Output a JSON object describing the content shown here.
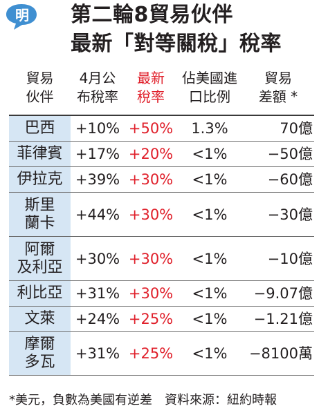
{
  "header": {
    "logo_char": "明",
    "title_line1": "第二輪8貿易伙伴",
    "title_line2": "最新「對等關稅」稅率"
  },
  "columns": [
    [
      "貿易",
      "伙伴"
    ],
    [
      "4月公",
      "布稅率"
    ],
    [
      "最新",
      "稅率"
    ],
    [
      "佔美國進",
      "口比例"
    ],
    [
      "貿易",
      "差額 *"
    ]
  ],
  "rows": [
    {
      "partner": "巴西",
      "april_rate": "+10%",
      "new_rate": "+50%",
      "import_share": "1.3%",
      "balance": "70億"
    },
    {
      "partner": "菲律賓",
      "april_rate": "+17%",
      "new_rate": "+20%",
      "import_share": "<1%",
      "balance": "−50億"
    },
    {
      "partner": "伊拉克",
      "april_rate": "+39%",
      "new_rate": "+30%",
      "import_share": "<1%",
      "balance": "−60億"
    },
    {
      "partner": "斯里\n蘭卡",
      "april_rate": "+44%",
      "new_rate": "+30%",
      "import_share": "<1%",
      "balance": "−30億"
    },
    {
      "partner": "阿爾\n及利亞",
      "april_rate": "+30%",
      "new_rate": "+30%",
      "import_share": "<1%",
      "balance": "−10億"
    },
    {
      "partner": "利比亞",
      "april_rate": "+31%",
      "new_rate": "+30%",
      "import_share": "<1%",
      "balance": "−9.07億"
    },
    {
      "partner": "文萊",
      "april_rate": "+24%",
      "new_rate": "+25%",
      "import_share": "<1%",
      "balance": "−1.21億"
    },
    {
      "partner": "摩爾\n多瓦",
      "april_rate": "+31%",
      "new_rate": "+25%",
      "import_share": "<1%",
      "balance": "−8100萬"
    }
  ],
  "footnote": "*美元，負數為美國有逆差　資料來源：紐約時報",
  "colors": {
    "red": "#e0202b",
    "name_cell_bg": "#d6e6f4",
    "logo_blue": "#3f8fd1"
  }
}
